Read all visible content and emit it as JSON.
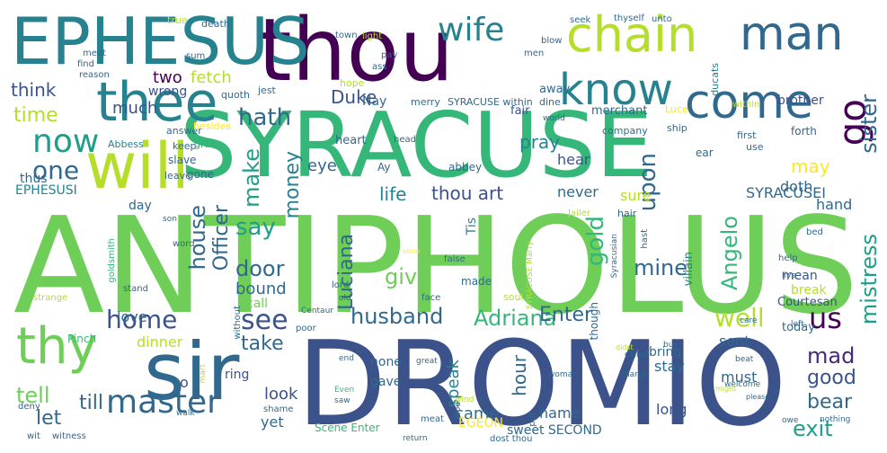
{
  "palette": {
    "dark_purple": "#440154",
    "indigo": "#482878",
    "blue": "#3b528b",
    "steel": "#31688e",
    "teal": "#26828e",
    "green_teal": "#1f9e89",
    "green": "#35b779",
    "lime": "#6ece58",
    "yellow_green": "#b5de2b",
    "yellow": "#fde725"
  },
  "words": [
    {
      "text": "ANTIPHOLUS",
      "color": "#6ece58"
    },
    {
      "text": "DROMIO",
      "color": "#3b528b"
    },
    {
      "text": "SYRACUSE",
      "color": "#35b779"
    },
    {
      "text": "thou",
      "color": "#440154"
    },
    {
      "text": "EPHESUS",
      "color": "#26828e"
    },
    {
      "text": "sir",
      "color": "#31688e"
    },
    {
      "text": "will",
      "color": "#b5de2b"
    },
    {
      "text": "thee",
      "color": "#26828e"
    },
    {
      "text": "chain",
      "color": "#b5de2b"
    },
    {
      "text": "man",
      "color": "#31688e"
    },
    {
      "text": "come",
      "color": "#31688e"
    },
    {
      "text": "know",
      "color": "#26828e"
    },
    {
      "text": "thy",
      "color": "#6ece58"
    },
    {
      "text": "master",
      "color": "#31688e"
    },
    {
      "text": "wife",
      "color": "#26828e"
    },
    {
      "text": "hath",
      "color": "#31688e"
    },
    {
      "text": "now",
      "color": "#1f9e89"
    },
    {
      "text": "go",
      "color": "#440154"
    },
    {
      "text": "home",
      "color": "#3b528b"
    },
    {
      "text": "see",
      "color": "#3b528b"
    },
    {
      "text": "husband",
      "color": "#31688e"
    },
    {
      "text": "Adriana",
      "color": "#35b779"
    },
    {
      "text": "one",
      "color": "#31688e"
    },
    {
      "text": "make",
      "color": "#1f9e89"
    },
    {
      "text": "money",
      "color": "#26828e"
    },
    {
      "text": "say",
      "color": "#1f9e89"
    },
    {
      "text": "door",
      "color": "#31688e"
    },
    {
      "text": "house",
      "color": "#31688e"
    },
    {
      "text": "Officer",
      "color": "#31688e"
    },
    {
      "text": "Luciana",
      "color": "#31688e"
    },
    {
      "text": "gold",
      "color": "#35b779"
    },
    {
      "text": "give",
      "color": "#6ece58"
    },
    {
      "text": "mine",
      "color": "#31688e"
    },
    {
      "text": "upon",
      "color": "#31688e"
    },
    {
      "text": "Angelo",
      "color": "#35b779"
    },
    {
      "text": "sister",
      "color": "#31688e"
    },
    {
      "text": "mistress",
      "color": "#1f9e89"
    },
    {
      "text": "us",
      "color": "#440154"
    },
    {
      "text": "well",
      "color": "#b5de2b"
    },
    {
      "text": "Enter",
      "color": "#31688e"
    },
    {
      "text": "mad",
      "color": "#482878"
    },
    {
      "text": "good",
      "color": "#3b528b"
    },
    {
      "text": "bear",
      "color": "#31688e"
    },
    {
      "text": "exit",
      "color": "#1f9e89"
    },
    {
      "text": "tell",
      "color": "#6ece58"
    },
    {
      "text": "till",
      "color": "#31688e"
    },
    {
      "text": "let",
      "color": "#31688e"
    },
    {
      "text": "take",
      "color": "#31688e"
    },
    {
      "text": "time",
      "color": "#b5de2b"
    },
    {
      "text": "think",
      "color": "#3b528b"
    },
    {
      "text": "much",
      "color": "#3b528b"
    },
    {
      "text": "two",
      "color": "#440154"
    },
    {
      "text": "fetch",
      "color": "#b5de2b"
    },
    {
      "text": "Duke",
      "color": "#3b528b"
    },
    {
      "text": "thou art",
      "color": "#3b528b"
    },
    {
      "text": "life",
      "color": "#26828e"
    },
    {
      "text": "pray",
      "color": "#26828e"
    },
    {
      "text": "eye",
      "color": "#31688e"
    },
    {
      "text": "hour",
      "color": "#31688e"
    },
    {
      "text": "speak",
      "color": "#26828e"
    },
    {
      "text": "love",
      "color": "#31688e"
    },
    {
      "text": "dinner",
      "color": "#b5de2b"
    },
    {
      "text": "look",
      "color": "#3b528b"
    },
    {
      "text": "yet",
      "color": "#31688e"
    },
    {
      "text": "came",
      "color": "#31688e"
    },
    {
      "text": "name",
      "color": "#31688e"
    },
    {
      "text": "long",
      "color": "#3b528b"
    },
    {
      "text": "must",
      "color": "#31688e"
    },
    {
      "text": "stay",
      "color": "#31688e"
    },
    {
      "text": "sent",
      "color": "#31688e"
    },
    {
      "text": "may",
      "color": "#fde725"
    },
    {
      "text": "doth",
      "color": "#31688e"
    },
    {
      "text": "hand",
      "color": "#31688e"
    },
    {
      "text": "SYRACUSEI",
      "color": "#31688e"
    },
    {
      "text": "never",
      "color": "#31688e"
    },
    {
      "text": "sure",
      "color": "#b5de2b"
    },
    {
      "text": "hear",
      "color": "#3b528b"
    },
    {
      "text": "brother",
      "color": "#3b528b"
    },
    {
      "text": "mean",
      "color": "#3b528b"
    },
    {
      "text": "break",
      "color": "#b5de2b"
    },
    {
      "text": "Courtesan",
      "color": "#3b528b"
    },
    {
      "text": "today",
      "color": "#31688e"
    },
    {
      "text": "EPHESUSI",
      "color": "#26828e"
    },
    {
      "text": "Nay",
      "color": "#31688e"
    },
    {
      "text": "wrong",
      "color": "#3b528b"
    },
    {
      "text": "away",
      "color": "#31688e"
    },
    {
      "text": "fair",
      "color": "#3b528b"
    },
    {
      "text": "merchant",
      "color": "#31688e"
    },
    {
      "text": "bound",
      "color": "#31688e"
    },
    {
      "text": "call",
      "color": "#6ece58"
    },
    {
      "text": "Tis",
      "color": "#26828e"
    },
    {
      "text": "gave",
      "color": "#31688e"
    },
    {
      "text": "none",
      "color": "#31688e"
    },
    {
      "text": "bring",
      "color": "#31688e"
    },
    {
      "text": "ring",
      "color": "#3b528b"
    },
    {
      "text": "EGEON",
      "color": "#fde725"
    },
    {
      "text": "sweet SECOND",
      "color": "#31688e"
    },
    {
      "text": "Scene Enter",
      "color": "#35b779"
    },
    {
      "text": "thus",
      "color": "#31688e"
    },
    {
      "text": "day",
      "color": "#31688e"
    },
    {
      "text": "o",
      "color": "#3b528b"
    },
    {
      "text": "villain",
      "color": "#26828e"
    },
    {
      "text": "heart",
      "color": "#31688e"
    },
    {
      "text": "Ay",
      "color": "#31688e"
    },
    {
      "text": "abbey",
      "color": "#31688e"
    },
    {
      "text": "made",
      "color": "#31688e"
    },
    {
      "text": "gone",
      "color": "#31688e"
    },
    {
      "text": "slave",
      "color": "#31688e"
    },
    {
      "text": "leave",
      "color": "#31688e"
    },
    {
      "text": "Abbess",
      "color": "#26828e"
    },
    {
      "text": "answer",
      "color": "#31688e"
    },
    {
      "text": "keep",
      "color": "#31688e"
    },
    {
      "text": "grace",
      "color": "#35b779"
    },
    {
      "text": "besides",
      "color": "#fde725"
    },
    {
      "text": "quoth",
      "color": "#31688e"
    },
    {
      "text": "jest",
      "color": "#31688e"
    },
    {
      "text": "hope",
      "color": "#b5de2b"
    },
    {
      "text": "merry",
      "color": "#31688e"
    },
    {
      "text": "SYRACUSE within",
      "color": "#31688e"
    },
    {
      "text": "dine",
      "color": "#31688e"
    },
    {
      "text": "ducats",
      "color": "#26828e"
    },
    {
      "text": "Luce",
      "color": "#fde725"
    },
    {
      "text": "within",
      "color": "#b5de2b"
    },
    {
      "text": "first",
      "color": "#31688e"
    },
    {
      "text": "use",
      "color": "#31688e"
    },
    {
      "text": "forth",
      "color": "#31688e"
    },
    {
      "text": "ear",
      "color": "#31688e"
    },
    {
      "text": "company",
      "color": "#31688e"
    },
    {
      "text": "ship",
      "color": "#31688e"
    },
    {
      "text": "world",
      "color": "#31688e"
    },
    {
      "text": "head",
      "color": "#31688e"
    },
    {
      "text": "true",
      "color": "#b5de2b"
    },
    {
      "text": "death",
      "color": "#31688e"
    },
    {
      "text": "seek",
      "color": "#31688e"
    },
    {
      "text": "thyself",
      "color": "#31688e"
    },
    {
      "text": "unto",
      "color": "#31688e"
    },
    {
      "text": "town",
      "color": "#31688e"
    },
    {
      "text": "light",
      "color": "#b5de2b"
    },
    {
      "text": "blow",
      "color": "#31688e"
    },
    {
      "text": "men",
      "color": "#31688e"
    },
    {
      "text": "pay",
      "color": "#31688e"
    },
    {
      "text": "ass",
      "color": "#31688e"
    },
    {
      "text": "meet",
      "color": "#31688e"
    },
    {
      "text": "sum",
      "color": "#31688e"
    },
    {
      "text": "find",
      "color": "#31688e"
    },
    {
      "text": "reason",
      "color": "#31688e"
    },
    {
      "text": "Jailer",
      "color": "#b5de2b"
    },
    {
      "text": "hair",
      "color": "#31688e"
    },
    {
      "text": "hast",
      "color": "#31688e"
    },
    {
      "text": "Syracusian",
      "color": "#31688e"
    },
    {
      "text": "bed",
      "color": "#31688e"
    },
    {
      "text": "help",
      "color": "#31688e"
    },
    {
      "text": "live",
      "color": "#31688e"
    },
    {
      "text": "care",
      "color": "#31688e"
    },
    {
      "text": "left",
      "color": "#31688e"
    },
    {
      "text": "false",
      "color": "#31688e"
    },
    {
      "text": "soul",
      "color": "#b5de2b"
    },
    {
      "text": "SYRACUSE Marry",
      "color": "#b5de2b"
    },
    {
      "text": "lord",
      "color": "#31688e"
    },
    {
      "text": "old",
      "color": "#31688e"
    },
    {
      "text": "face",
      "color": "#31688e"
    },
    {
      "text": "poor",
      "color": "#31688e"
    },
    {
      "text": "Centaur",
      "color": "#31688e"
    },
    {
      "text": "son",
      "color": "#31688e"
    },
    {
      "text": "goldsmith",
      "color": "#35b779"
    },
    {
      "text": "word",
      "color": "#31688e"
    },
    {
      "text": "strange",
      "color": "#b5de2b"
    },
    {
      "text": "stand",
      "color": "#31688e"
    },
    {
      "text": "without",
      "color": "#31688e"
    },
    {
      "text": "Pinch",
      "color": "#35b779"
    },
    {
      "text": "deny",
      "color": "#31688e"
    },
    {
      "text": "wit",
      "color": "#31688e"
    },
    {
      "text": "witness",
      "color": "#31688e"
    },
    {
      "text": "shame",
      "color": "#31688e"
    },
    {
      "text": "walk",
      "color": "#31688e"
    },
    {
      "text": "Even",
      "color": "#35b779"
    },
    {
      "text": "saw",
      "color": "#31688e"
    },
    {
      "text": "end",
      "color": "#31688e"
    },
    {
      "text": "great",
      "color": "#31688e"
    },
    {
      "text": "woman",
      "color": "#31688e"
    },
    {
      "text": "buy",
      "color": "#31688e"
    },
    {
      "text": "beat",
      "color": "#31688e"
    },
    {
      "text": "welcome",
      "color": "#31688e"
    },
    {
      "text": "nothing",
      "color": "#31688e"
    },
    {
      "text": "please",
      "color": "#31688e"
    },
    {
      "text": "charge",
      "color": "#31688e"
    },
    {
      "text": "called",
      "color": "#31688e"
    },
    {
      "text": "didst",
      "color": "#b5de2b"
    },
    {
      "text": "might",
      "color": "#b5de2b"
    },
    {
      "text": "owe",
      "color": "#31688e"
    },
    {
      "text": "wind",
      "color": "#b5de2b"
    },
    {
      "text": "God",
      "color": "#31688e"
    },
    {
      "text": "meat",
      "color": "#31688e"
    },
    {
      "text": "return",
      "color": "#31688e"
    },
    {
      "text": "dost thou",
      "color": "#31688e"
    },
    {
      "text": "put",
      "color": "#31688e"
    },
    {
      "text": "mart",
      "color": "#b5de2b"
    },
    {
      "text": "soon",
      "color": "#fde725"
    },
    {
      "text": "though",
      "color": "#31688e"
    }
  ]
}
